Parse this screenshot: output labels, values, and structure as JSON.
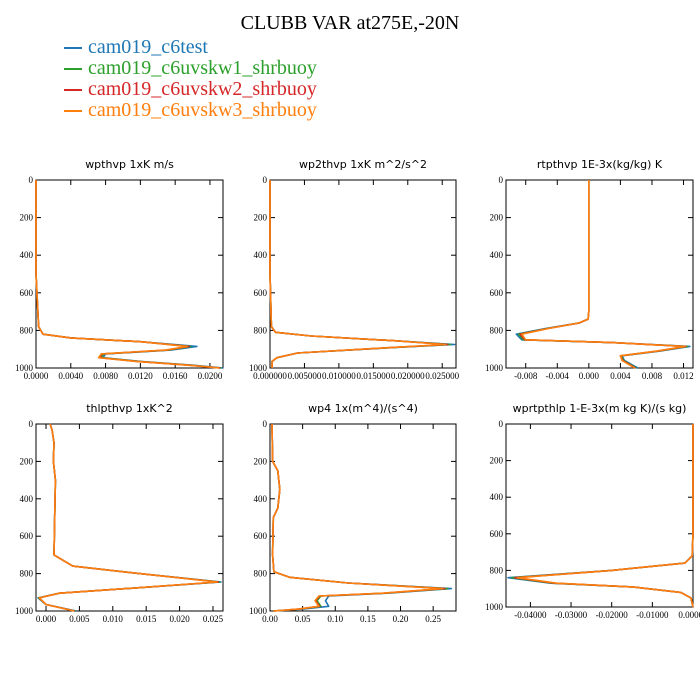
{
  "title": "CLUBB VAR at275E,-20N",
  "legend": [
    {
      "label": "cam019_c6test",
      "color": "#1f77b4"
    },
    {
      "label": "cam019_c6uvskw1_shrbuoy",
      "color": "#2ca02c"
    },
    {
      "label": "cam019_c6uvskw2_shrbuoy",
      "color": "#d62728"
    },
    {
      "label": "cam019_c6uvskw3_shrbuoy",
      "color": "#ff7f0e"
    }
  ],
  "chart_data": [
    {
      "type": "line",
      "title": "wpthvp   1xK m/s",
      "xlim": [
        0,
        0.0215
      ],
      "ylim": [
        1000,
        0
      ],
      "xticks": [
        0,
        0.004,
        0.008,
        0.012,
        0.016,
        0.02
      ],
      "xticklabels": [
        "0.0000",
        "0.0040",
        "0.0080",
        "0.0120",
        "0.0160",
        "0.0200"
      ],
      "yticks": [
        0,
        200,
        400,
        600,
        800,
        1000
      ],
      "series": [
        {
          "color": "#1f77b4",
          "x": [
            0,
            0,
            0.0003,
            0.0008,
            0.004,
            0.012,
            0.0185,
            0.0155,
            0.008,
            0.0077,
            0.012,
            0.018,
            0.0215
          ],
          "y": [
            0,
            500,
            780,
            820,
            840,
            860,
            885,
            905,
            925,
            945,
            965,
            985,
            1000
          ]
        },
        {
          "color": "#2ca02c",
          "x": [
            0,
            0,
            0.0003,
            0.0008,
            0.004,
            0.012,
            0.0178,
            0.0152,
            0.0078,
            0.0075,
            0.0118,
            0.0178,
            0.0213
          ],
          "y": [
            0,
            500,
            780,
            820,
            840,
            860,
            885,
            905,
            925,
            945,
            965,
            985,
            1000
          ]
        },
        {
          "color": "#d62728",
          "x": [
            0,
            0,
            0.0003,
            0.0008,
            0.004,
            0.012,
            0.0176,
            0.015,
            0.0076,
            0.0073,
            0.0116,
            0.0176,
            0.0212
          ],
          "y": [
            0,
            500,
            780,
            820,
            840,
            860,
            885,
            905,
            925,
            945,
            965,
            985,
            1000
          ]
        },
        {
          "color": "#ff7f0e",
          "x": [
            0,
            0,
            0.0003,
            0.0008,
            0.004,
            0.012,
            0.0174,
            0.0149,
            0.0075,
            0.0072,
            0.0115,
            0.0175,
            0.0211
          ],
          "y": [
            0,
            500,
            780,
            820,
            840,
            860,
            885,
            905,
            925,
            945,
            965,
            985,
            1000
          ]
        }
      ]
    },
    {
      "type": "line",
      "title": "wp2thvp   1xK m^2/s^2",
      "xlim": [
        0,
        0.027
      ],
      "ylim": [
        1000,
        0
      ],
      "xticks": [
        0,
        0.005,
        0.01,
        0.015,
        0.02,
        0.025
      ],
      "xticklabels": [
        "0.000000",
        "0.005000",
        "0.010000",
        "0.015000",
        "0.020000",
        "0.025000"
      ],
      "yticks": [
        0,
        200,
        400,
        600,
        800,
        1000
      ],
      "series": [
        {
          "color": "#1f77b4",
          "x": [
            0,
            0,
            0.0002,
            0.0008,
            0.006,
            0.018,
            0.0268,
            0.016,
            0.004,
            0.001,
            0.0003,
            0.0003
          ],
          "y": [
            0,
            500,
            780,
            810,
            830,
            855,
            875,
            895,
            920,
            945,
            965,
            1000
          ]
        },
        {
          "color": "#2ca02c",
          "x": [
            0,
            0,
            0.0002,
            0.0008,
            0.006,
            0.018,
            0.0262,
            0.0158,
            0.004,
            0.001,
            0.0003,
            0.0003
          ],
          "y": [
            0,
            500,
            780,
            810,
            830,
            855,
            875,
            895,
            920,
            945,
            965,
            1000
          ]
        },
        {
          "color": "#d62728",
          "x": [
            0,
            0,
            0.0002,
            0.0008,
            0.006,
            0.018,
            0.0258,
            0.0156,
            0.004,
            0.001,
            0.0003,
            0.0003
          ],
          "y": [
            0,
            500,
            780,
            810,
            830,
            855,
            875,
            895,
            920,
            945,
            965,
            1000
          ]
        },
        {
          "color": "#ff7f0e",
          "x": [
            0,
            0,
            0.0002,
            0.0008,
            0.006,
            0.018,
            0.0255,
            0.0155,
            0.004,
            0.001,
            0.0003,
            0.0003
          ],
          "y": [
            0,
            500,
            780,
            810,
            830,
            855,
            875,
            895,
            920,
            945,
            965,
            1000
          ]
        }
      ]
    },
    {
      "type": "line",
      "title": "rtpthvp   1E-3x(kg/kg) K",
      "xlim": [
        -0.0105,
        0.0132
      ],
      "ylim": [
        1000,
        0
      ],
      "xticks": [
        -0.008,
        -0.004,
        0,
        0.004,
        0.008,
        0.012
      ],
      "xticklabels": [
        "-0.008",
        "-0.004",
        "0.000",
        "0.004",
        "0.008",
        "0.012"
      ],
      "yticks": [
        0,
        200,
        400,
        600,
        800,
        1000
      ],
      "series": [
        {
          "color": "#1f77b4",
          "x": [
            0,
            0,
            -0.0001,
            -0.0012,
            -0.0055,
            -0.0092,
            -0.0085,
            0.003,
            0.0128,
            0.009,
            0.0042,
            0.0045,
            0.0062
          ],
          "y": [
            0,
            700,
            740,
            760,
            790,
            820,
            850,
            865,
            885,
            910,
            935,
            960,
            1000
          ]
        },
        {
          "color": "#2ca02c",
          "x": [
            0,
            0,
            -0.0001,
            -0.0012,
            -0.0053,
            -0.0089,
            -0.0083,
            0.003,
            0.0125,
            0.0088,
            0.0041,
            0.0044,
            0.006
          ],
          "y": [
            0,
            700,
            740,
            760,
            790,
            820,
            850,
            865,
            885,
            910,
            935,
            960,
            1000
          ]
        },
        {
          "color": "#d62728",
          "x": [
            0,
            0,
            -0.0001,
            -0.0012,
            -0.0052,
            -0.0087,
            -0.0081,
            0.003,
            0.0123,
            0.0087,
            0.004,
            0.0043,
            0.0059
          ],
          "y": [
            0,
            700,
            740,
            760,
            790,
            820,
            850,
            865,
            885,
            910,
            935,
            960,
            1000
          ]
        },
        {
          "color": "#ff7f0e",
          "x": [
            0,
            0,
            -0.0001,
            -0.0012,
            -0.0051,
            -0.0085,
            -0.008,
            0.003,
            0.0122,
            0.0086,
            0.004,
            0.0042,
            0.0058
          ],
          "y": [
            0,
            700,
            740,
            760,
            790,
            820,
            850,
            865,
            885,
            910,
            935,
            960,
            1000
          ]
        }
      ]
    },
    {
      "type": "line",
      "title": "thlpthvp   1xK^2",
      "xlim": [
        -0.0015,
        0.0265
      ],
      "ylim": [
        1000,
        0
      ],
      "xticks": [
        0,
        0.005,
        0.01,
        0.015,
        0.02,
        0.025
      ],
      "xticklabels": [
        "0.000",
        "0.005",
        "0.010",
        "0.015",
        "0.020",
        "0.025"
      ],
      "yticks": [
        0,
        200,
        400,
        600,
        800,
        1000
      ],
      "series": [
        {
          "color": "#1f77b4",
          "x": [
            0.0006,
            0.0009,
            0.0012,
            0.0011,
            0.0014,
            0.0013,
            0.0012,
            0.004,
            0.014,
            0.0262,
            0.012,
            0.002,
            -0.0012,
            0,
            0.0045
          ],
          "y": [
            0,
            30,
            100,
            200,
            300,
            500,
            700,
            760,
            800,
            845,
            880,
            905,
            930,
            965,
            1000
          ]
        },
        {
          "color": "#2ca02c",
          "x": [
            0.0006,
            0.0009,
            0.0012,
            0.0011,
            0.0014,
            0.0013,
            0.0012,
            0.004,
            0.014,
            0.026,
            0.012,
            0.002,
            -0.0011,
            0,
            0.0044
          ],
          "y": [
            0,
            30,
            100,
            200,
            300,
            500,
            700,
            760,
            800,
            845,
            880,
            905,
            930,
            965,
            1000
          ]
        },
        {
          "color": "#d62728",
          "x": [
            0.0006,
            0.0009,
            0.0012,
            0.0011,
            0.0014,
            0.0013,
            0.0012,
            0.004,
            0.014,
            0.0258,
            0.012,
            0.002,
            -0.001,
            0,
            0.0043
          ],
          "y": [
            0,
            30,
            100,
            200,
            300,
            500,
            700,
            760,
            800,
            845,
            880,
            905,
            930,
            965,
            1000
          ]
        },
        {
          "color": "#ff7f0e",
          "x": [
            0.0006,
            0.0009,
            0.0012,
            0.0011,
            0.0014,
            0.0013,
            0.0012,
            0.004,
            0.014,
            0.0256,
            0.012,
            0.002,
            -0.001,
            0,
            0.0042
          ],
          "y": [
            0,
            30,
            100,
            200,
            300,
            500,
            700,
            760,
            800,
            845,
            880,
            905,
            930,
            965,
            1000
          ]
        }
      ]
    },
    {
      "type": "line",
      "title": "wp4   1x(m^4)/(s^4)",
      "xlim": [
        0,
        0.285
      ],
      "ylim": [
        1000,
        0
      ],
      "xticks": [
        0,
        0.05,
        0.1,
        0.15,
        0.2,
        0.25
      ],
      "xticklabels": [
        "0.00",
        "0.05",
        "0.10",
        "0.15",
        "0.20",
        "0.25"
      ],
      "yticks": [
        0,
        200,
        400,
        600,
        800,
        1000
      ],
      "series": [
        {
          "color": "#1f77b4",
          "x": [
            0.003,
            0.004,
            0.012,
            0.015,
            0.012,
            0.005,
            0.004,
            0.006,
            0.03,
            0.12,
            0.278,
            0.18,
            0.09,
            0.085,
            0.09,
            0.05,
            0.005
          ],
          "y": [
            0,
            200,
            250,
            350,
            450,
            500,
            700,
            790,
            820,
            850,
            880,
            905,
            920,
            945,
            975,
            990,
            1000
          ]
        },
        {
          "color": "#2ca02c",
          "x": [
            0.003,
            0.004,
            0.012,
            0.015,
            0.012,
            0.005,
            0.004,
            0.006,
            0.03,
            0.12,
            0.272,
            0.176,
            0.078,
            0.072,
            0.078,
            0.045,
            0.005
          ],
          "y": [
            0,
            200,
            250,
            350,
            450,
            500,
            700,
            790,
            820,
            850,
            880,
            905,
            920,
            945,
            975,
            990,
            1000
          ]
        },
        {
          "color": "#d62728",
          "x": [
            0.003,
            0.004,
            0.012,
            0.015,
            0.012,
            0.005,
            0.004,
            0.006,
            0.03,
            0.12,
            0.268,
            0.174,
            0.076,
            0.07,
            0.076,
            0.044,
            0.005
          ],
          "y": [
            0,
            200,
            250,
            350,
            450,
            500,
            700,
            790,
            820,
            850,
            880,
            905,
            920,
            945,
            975,
            990,
            1000
          ]
        },
        {
          "color": "#ff7f0e",
          "x": [
            0.003,
            0.004,
            0.012,
            0.015,
            0.012,
            0.005,
            0.004,
            0.006,
            0.03,
            0.12,
            0.265,
            0.172,
            0.075,
            0.069,
            0.075,
            0.043,
            0.005
          ],
          "y": [
            0,
            200,
            250,
            350,
            450,
            500,
            700,
            790,
            820,
            850,
            880,
            905,
            920,
            945,
            975,
            990,
            1000
          ]
        }
      ]
    },
    {
      "type": "line",
      "title": "wprtpthlp   1-E-3x(m kg K)/(s kg)",
      "xlim": [
        -0.046,
        0
      ],
      "ylim": [
        1000,
        0
      ],
      "xticks": [
        -0.04,
        -0.03,
        -0.02,
        -0.01,
        0
      ],
      "xticklabels": [
        "-0.04000",
        "-0.03000",
        "-0.02000",
        "-0.01000",
        "0.00000"
      ],
      "yticks": [
        0,
        200,
        400,
        600,
        800,
        1000
      ],
      "series": [
        {
          "color": "#1f77b4",
          "x": [
            0,
            0,
            -0.0002,
            -0.002,
            -0.02,
            -0.0455,
            -0.035,
            -0.015,
            -0.003,
            -0.0005,
            0
          ],
          "y": [
            0,
            600,
            720,
            760,
            800,
            840,
            870,
            890,
            920,
            950,
            1000
          ]
        },
        {
          "color": "#2ca02c",
          "x": [
            0,
            0,
            -0.0002,
            -0.002,
            -0.02,
            -0.0445,
            -0.0345,
            -0.015,
            -0.003,
            -0.0005,
            0
          ],
          "y": [
            0,
            600,
            720,
            760,
            800,
            840,
            870,
            890,
            920,
            950,
            1000
          ]
        },
        {
          "color": "#d62728",
          "x": [
            0,
            0,
            -0.0002,
            -0.002,
            -0.02,
            -0.0438,
            -0.034,
            -0.015,
            -0.003,
            -0.0005,
            0
          ],
          "y": [
            0,
            600,
            720,
            760,
            800,
            840,
            870,
            890,
            920,
            950,
            1000
          ]
        },
        {
          "color": "#ff7f0e",
          "x": [
            0,
            0,
            -0.0002,
            -0.002,
            -0.02,
            -0.0432,
            -0.0335,
            -0.015,
            -0.003,
            -0.0005,
            0
          ],
          "y": [
            0,
            600,
            720,
            760,
            800,
            840,
            870,
            890,
            920,
            950,
            1000
          ]
        }
      ]
    }
  ]
}
